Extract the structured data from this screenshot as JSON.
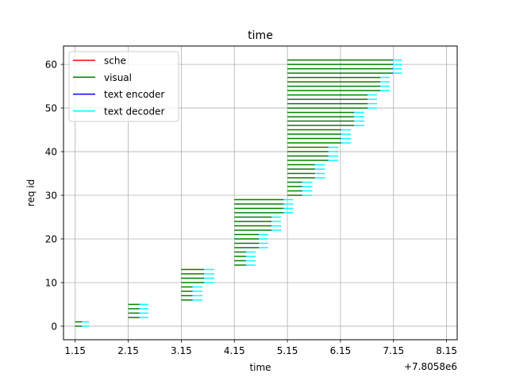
{
  "chart_data": {
    "type": "gantt",
    "title": "time",
    "xlabel": "time",
    "ylabel": "req id",
    "x_offset_label": "+7.8058e6",
    "x_offset": 7805800,
    "x_ticks": [
      1.15,
      2.15,
      3.15,
      4.15,
      5.15,
      6.15,
      7.15,
      8.15
    ],
    "x_tick_labels": [
      "1.15",
      "2.15",
      "3.15",
      "4.15",
      "5.15",
      "6.15",
      "7.15",
      "8.15"
    ],
    "y_ticks": [
      0,
      10,
      20,
      30,
      40,
      50,
      60
    ],
    "y_tick_labels": [
      "0",
      "10",
      "20",
      "30",
      "40",
      "50",
      "60"
    ],
    "xlim": [
      0.93,
      8.35
    ],
    "ylim": [
      -3.1,
      64.2
    ],
    "grid": true,
    "legend_position": "upper-left",
    "series": [
      {
        "name": "sche",
        "color": "#ff0000"
      },
      {
        "name": "visual",
        "color": "#008000"
      },
      {
        "name": "text encoder",
        "color": "#0000ff"
      },
      {
        "name": "text decoder",
        "color": "#00ffff"
      }
    ],
    "groups": [
      {
        "ids": [
          0,
          1
        ],
        "start": 1.15,
        "visual_end": 1.27,
        "enc_end": 1.28,
        "dec_end": 1.41
      },
      {
        "ids": [
          2,
          3,
          4,
          5
        ],
        "start": 2.15,
        "visual_end": 2.35,
        "enc_end": 2.36,
        "dec_end": 2.53
      },
      {
        "ids": [
          6,
          7,
          8,
          9
        ],
        "start": 3.15,
        "visual_end": 3.35,
        "enc_end": 3.36,
        "dec_end": 3.55
      },
      {
        "ids": [
          10,
          11,
          12,
          13
        ],
        "start": 3.15,
        "visual_end": 3.57,
        "enc_end": 3.58,
        "dec_end": 3.77
      },
      {
        "ids": [
          14,
          15,
          16,
          17
        ],
        "start": 4.15,
        "visual_end": 4.36,
        "enc_end": 4.37,
        "dec_end": 4.55
      },
      {
        "ids": [
          18,
          19,
          20,
          21
        ],
        "start": 4.15,
        "visual_end": 4.6,
        "enc_end": 4.61,
        "dec_end": 4.79
      },
      {
        "ids": [
          22,
          23,
          24,
          25
        ],
        "start": 4.15,
        "visual_end": 4.84,
        "enc_end": 4.85,
        "dec_end": 5.03
      },
      {
        "ids": [
          26,
          27,
          28,
          29
        ],
        "start": 4.15,
        "visual_end": 5.07,
        "enc_end": 5.08,
        "dec_end": 5.26
      },
      {
        "ids": [
          30,
          31,
          32,
          33
        ],
        "start": 5.15,
        "visual_end": 5.42,
        "enc_end": 5.43,
        "dec_end": 5.62
      },
      {
        "ids": [
          34,
          35,
          36,
          37
        ],
        "start": 5.15,
        "visual_end": 5.66,
        "enc_end": 5.67,
        "dec_end": 5.86
      },
      {
        "ids": [
          38,
          39,
          40,
          41
        ],
        "start": 5.15,
        "visual_end": 5.91,
        "enc_end": 5.92,
        "dec_end": 6.11
      },
      {
        "ids": [
          42,
          43,
          44,
          45
        ],
        "start": 5.15,
        "visual_end": 6.15,
        "enc_end": 6.16,
        "dec_end": 6.35
      },
      {
        "ids": [
          46,
          47,
          48,
          49
        ],
        "start": 5.15,
        "visual_end": 6.4,
        "enc_end": 6.41,
        "dec_end": 6.6
      },
      {
        "ids": [
          50,
          51,
          52,
          53
        ],
        "start": 5.15,
        "visual_end": 6.65,
        "enc_end": 6.66,
        "dec_end": 6.84
      },
      {
        "ids": [
          54,
          55,
          56,
          57
        ],
        "start": 5.15,
        "visual_end": 6.89,
        "enc_end": 6.9,
        "dec_end": 7.08
      },
      {
        "ids": [
          58,
          59,
          60,
          61
        ],
        "start": 5.15,
        "visual_end": 7.13,
        "enc_end": 7.14,
        "dec_end": 7.31
      }
    ]
  }
}
